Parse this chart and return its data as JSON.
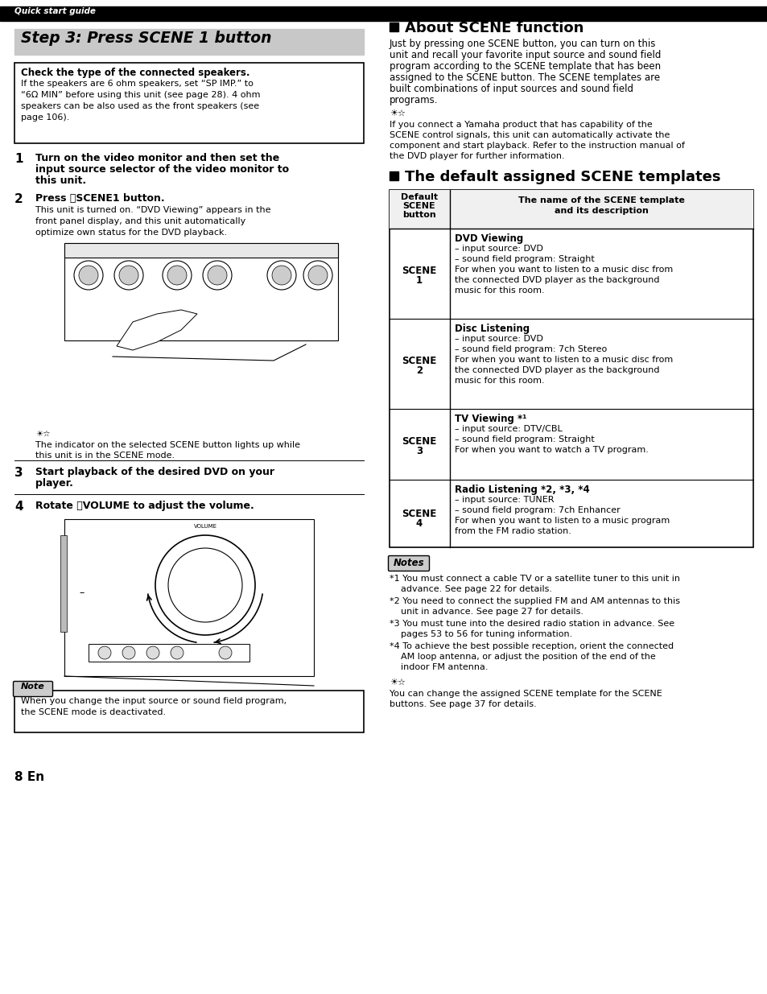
{
  "page_bg": "#ffffff",
  "top_bar_color": "#000000",
  "top_bar_text": "Quick start guide",
  "top_bar_text_color": "#ffffff",
  "step_box_bg": "#c8c8c8",
  "step_box_text": "Step 3: Press SCENE 1 button",
  "check_box_title": "Check the type of the connected speakers.",
  "check_box_body_lines": [
    "If the speakers are 6 ohm speakers, set “SP IMP.” to",
    "“6Ω MIN” before using this unit (see page 28). 4 ohm",
    "speakers can be also used as the front speakers (see",
    "page 106)."
  ],
  "step1_bold": "Turn on the video monitor and then set the",
  "step1_bold2": "input source selector of the video monitor to",
  "step1_bold3": "this unit.",
  "step2_bold": "Press ⓈSCENE1 button.",
  "step2_body": [
    "This unit is turned on. “DVD Viewing” appears in the",
    "front panel display, and this unit automatically",
    "optimize own status for the DVD playback."
  ],
  "tip1_lines": [
    "The indicator on the selected SCENE button lights up while",
    "this unit is in the SCENE mode."
  ],
  "step3_bold": "Start playback of the desired DVD on your",
  "step3_bold2": "player.",
  "step4_bold": "Rotate ⓙVOLUME to adjust the volume.",
  "note_text_lines": [
    "When you change the input source or sound field program,",
    "the SCENE mode is deactivated."
  ],
  "page_num": "8 En",
  "about_title": "About SCENE function",
  "about_body": [
    "Just by pressing one SCENE button, you can turn on this",
    "unit and recall your favorite input source and sound field",
    "program according to the SCENE template that has been",
    "assigned to the SCENE button. The SCENE templates are",
    "built combinations of input sources and sound field",
    "programs."
  ],
  "tip2_lines": [
    "If you connect a Yamaha product that has capability of the",
    "SCENE control signals, this unit can automatically activate the",
    "component and start playback. Refer to the instruction manual of",
    "the DVD player for further information."
  ],
  "default_title": "The default assigned SCENE templates",
  "table_col1_header": [
    "Default",
    "SCENE",
    "button"
  ],
  "table_col2_header": [
    "The name of the SCENE template",
    "and its description"
  ],
  "table_rows": [
    {
      "scene": [
        "SCENE",
        "1"
      ],
      "title": "DVD Viewing",
      "details": [
        "– input source: DVD",
        "– sound field program: Straight",
        "For when you want to listen to a music disc from",
        "the connected DVD player as the background",
        "music for this room."
      ]
    },
    {
      "scene": [
        "SCENE",
        "2"
      ],
      "title": "Disc Listening",
      "details": [
        "– input source: DVD",
        "– sound field program: 7ch Stereo",
        "For when you want to listen to a music disc from",
        "the connected DVD player as the background",
        "music for this room."
      ]
    },
    {
      "scene": [
        "SCENE",
        "3"
      ],
      "title": "TV Viewing *¹",
      "details": [
        "– input source: DTV/CBL",
        "– sound field program: Straight",
        "For when you want to watch a TV program."
      ]
    },
    {
      "scene": [
        "SCENE",
        "4"
      ],
      "title": "Radio Listening *2, *3, *4",
      "details": [
        "– input source: TUNER",
        "– sound field program: 7ch Enhancer",
        "For when you want to listen to a music program",
        "from the FM radio station."
      ]
    }
  ],
  "notes_items": [
    [
      "*1 You must connect a cable TV or a satellite tuner to this unit in",
      "    advance. See page 22 for details."
    ],
    [
      "*2 You need to connect the supplied FM and AM antennas to this",
      "    unit in advance. See page 27 for details."
    ],
    [
      "*3 You must tune into the desired radio station in advance. See",
      "    pages 53 to 56 for tuning information."
    ],
    [
      "*4 To achieve the best possible reception, orient the connected",
      "    AM loop antenna, or adjust the position of the end of the",
      "    indoor FM antenna."
    ]
  ],
  "tip3_lines": [
    "You can change the assigned SCENE template for the SCENE",
    "buttons. See page 37 for details."
  ]
}
